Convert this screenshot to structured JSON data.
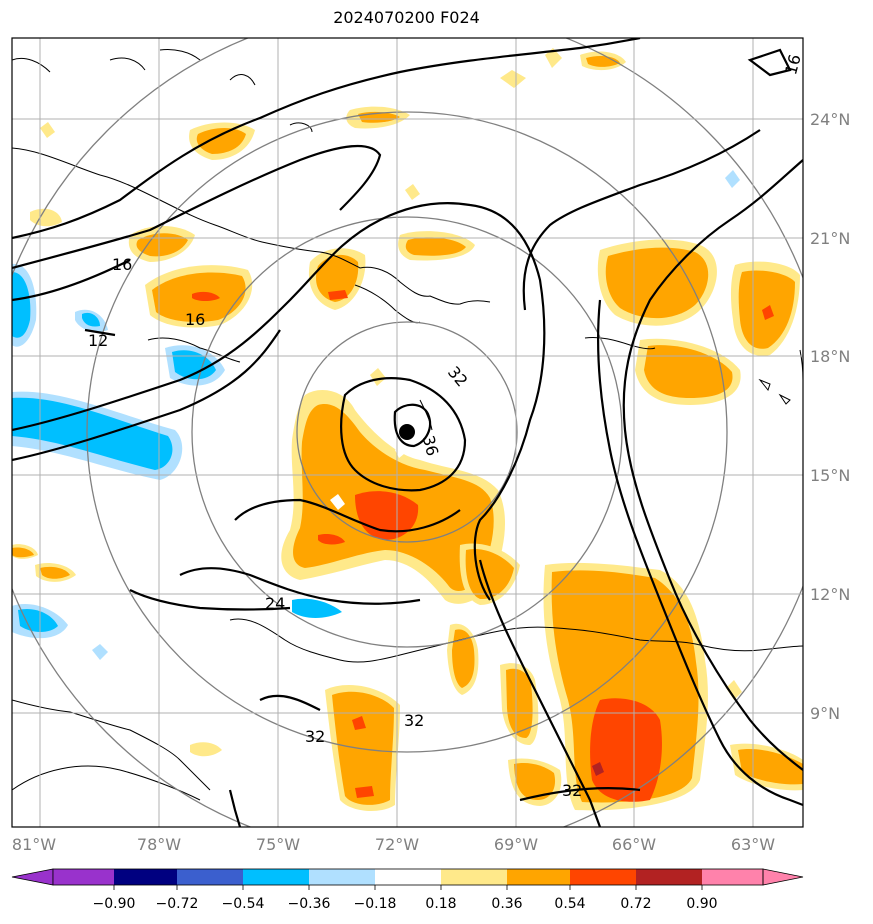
{
  "title": "2024070200 F024",
  "map": {
    "lon_labels": [
      "81°W",
      "78°W",
      "75°W",
      "72°W",
      "69°W",
      "66°W",
      "63°W"
    ],
    "lat_labels": [
      "24°N",
      "21°N",
      "18°N",
      "15°N",
      "12°N",
      "9°N"
    ],
    "contour_labels": [
      "16",
      "16",
      "12",
      "16",
      "32",
      "36",
      "24",
      "32",
      "32",
      "32"
    ],
    "colors": {
      "purple": "#9932cc",
      "navy": "#000080",
      "royal": "#3b5fce",
      "deepsky": "#00bfff",
      "lightblue": "#b0e0ff",
      "white": "#ffffff",
      "lightyellow": "#ffe98a",
      "orange": "#ffa500",
      "orangered": "#ff4500",
      "firebrick": "#b22222",
      "pink": "#ff82ab"
    }
  },
  "colorbar": {
    "ticks": [
      "−0.90",
      "−0.72",
      "−0.54",
      "−0.36",
      "−0.18",
      "0.18",
      "0.36",
      "0.54",
      "0.72",
      "0.90"
    ]
  }
}
